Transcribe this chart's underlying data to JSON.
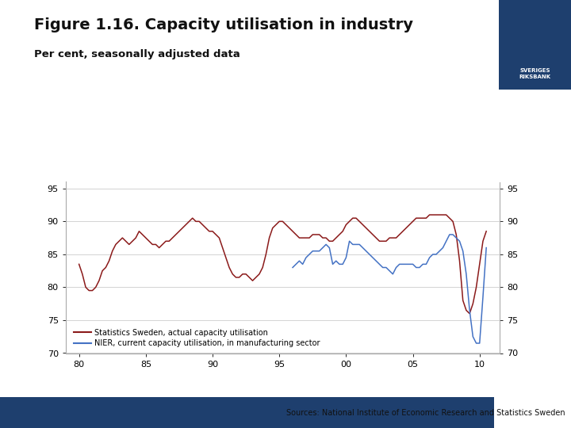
{
  "title": "Figure 1.16. Capacity utilisation in industry",
  "subtitle": "Per cent, seasonally adjusted data",
  "title_fontsize": 14,
  "subtitle_fontsize": 9.5,
  "ylim": [
    70,
    96
  ],
  "yticks": [
    70,
    75,
    80,
    85,
    90,
    95
  ],
  "xticks": [
    1980,
    1985,
    1990,
    1995,
    2000,
    2005,
    2010
  ],
  "xticklabels": [
    "80",
    "85",
    "90",
    "95",
    "00",
    "05",
    "10"
  ],
  "xlim": [
    1979.0,
    2011.5
  ],
  "grid_color": "#cccccc",
  "background_color": "#ffffff",
  "dark_blue": "#1e3f6e",
  "series1_color": "#8b1a1a",
  "series2_color": "#4472c4",
  "legend1_label": "Statistics Sweden, actual capacity utilisation",
  "legend2_label": "NIER, current capacity utilisation, in manufacturing sector",
  "sources_text": "Sources: National Institute of Economic Research and Statistics Sweden",
  "series1_x": [
    1980,
    1980.25,
    1980.5,
    1980.75,
    1981,
    1981.25,
    1981.5,
    1981.75,
    1982,
    1982.25,
    1982.5,
    1982.75,
    1983,
    1983.25,
    1983.5,
    1983.75,
    1984,
    1984.25,
    1984.5,
    1984.75,
    1985,
    1985.25,
    1985.5,
    1985.75,
    1986,
    1986.25,
    1986.5,
    1986.75,
    1987,
    1987.25,
    1987.5,
    1987.75,
    1988,
    1988.25,
    1988.5,
    1988.75,
    1989,
    1989.25,
    1989.5,
    1989.75,
    1990,
    1990.25,
    1990.5,
    1990.75,
    1991,
    1991.25,
    1991.5,
    1991.75,
    1992,
    1992.25,
    1992.5,
    1992.75,
    1993,
    1993.25,
    1993.5,
    1993.75,
    1994,
    1994.25,
    1994.5,
    1994.75,
    1995,
    1995.25,
    1995.5,
    1995.75,
    1996,
    1996.25,
    1996.5,
    1996.75,
    1997,
    1997.25,
    1997.5,
    1997.75,
    1998,
    1998.25,
    1998.5,
    1998.75,
    1999,
    1999.25,
    1999.5,
    1999.75,
    2000,
    2000.25,
    2000.5,
    2000.75,
    2001,
    2001.25,
    2001.5,
    2001.75,
    2002,
    2002.25,
    2002.5,
    2002.75,
    2003,
    2003.25,
    2003.5,
    2003.75,
    2004,
    2004.25,
    2004.5,
    2004.75,
    2005,
    2005.25,
    2005.5,
    2005.75,
    2006,
    2006.25,
    2006.5,
    2006.75,
    2007,
    2007.25,
    2007.5,
    2007.75,
    2008,
    2008.25,
    2008.5,
    2008.75,
    2009,
    2009.25,
    2009.5,
    2009.75,
    2010,
    2010.25,
    2010.5
  ],
  "series1_y": [
    83.5,
    82.0,
    80.0,
    79.5,
    79.5,
    80.0,
    81.0,
    82.5,
    83.0,
    84.0,
    85.5,
    86.5,
    87.0,
    87.5,
    87.0,
    86.5,
    87.0,
    87.5,
    88.5,
    88.0,
    87.5,
    87.0,
    86.5,
    86.5,
    86.0,
    86.5,
    87.0,
    87.0,
    87.5,
    88.0,
    88.5,
    89.0,
    89.5,
    90.0,
    90.5,
    90.0,
    90.0,
    89.5,
    89.0,
    88.5,
    88.5,
    88.0,
    87.5,
    86.0,
    84.5,
    83.0,
    82.0,
    81.5,
    81.5,
    82.0,
    82.0,
    81.5,
    81.0,
    81.5,
    82.0,
    83.0,
    85.0,
    87.5,
    89.0,
    89.5,
    90.0,
    90.0,
    89.5,
    89.0,
    88.5,
    88.0,
    87.5,
    87.5,
    87.5,
    87.5,
    88.0,
    88.0,
    88.0,
    87.5,
    87.5,
    87.0,
    87.0,
    87.5,
    88.0,
    88.5,
    89.5,
    90.0,
    90.5,
    90.5,
    90.0,
    89.5,
    89.0,
    88.5,
    88.0,
    87.5,
    87.0,
    87.0,
    87.0,
    87.5,
    87.5,
    87.5,
    88.0,
    88.5,
    89.0,
    89.5,
    90.0,
    90.5,
    90.5,
    90.5,
    90.5,
    91.0,
    91.0,
    91.0,
    91.0,
    91.0,
    91.0,
    90.5,
    90.0,
    88.0,
    84.0,
    78.0,
    76.5,
    76.0,
    77.5,
    80.0,
    83.5,
    87.0,
    88.5
  ],
  "series2_x": [
    1996,
    1996.25,
    1996.5,
    1996.75,
    1997,
    1997.25,
    1997.5,
    1997.75,
    1998,
    1998.25,
    1998.5,
    1998.75,
    1999,
    1999.25,
    1999.5,
    1999.75,
    2000,
    2000.25,
    2000.5,
    2000.75,
    2001,
    2001.25,
    2001.5,
    2001.75,
    2002,
    2002.25,
    2002.5,
    2002.75,
    2003,
    2003.25,
    2003.5,
    2003.75,
    2004,
    2004.25,
    2004.5,
    2004.75,
    2005,
    2005.25,
    2005.5,
    2005.75,
    2006,
    2006.25,
    2006.5,
    2006.75,
    2007,
    2007.25,
    2007.5,
    2007.75,
    2008,
    2008.25,
    2008.5,
    2008.75,
    2009,
    2009.25,
    2009.5,
    2009.75,
    2010,
    2010.25,
    2010.5
  ],
  "series2_y": [
    83.0,
    83.5,
    84.0,
    83.5,
    84.5,
    85.0,
    85.5,
    85.5,
    85.5,
    86.0,
    86.5,
    86.0,
    83.5,
    84.0,
    83.5,
    83.5,
    84.5,
    87.0,
    86.5,
    86.5,
    86.5,
    86.0,
    85.5,
    85.0,
    84.5,
    84.0,
    83.5,
    83.0,
    83.0,
    82.5,
    82.0,
    83.0,
    83.5,
    83.5,
    83.5,
    83.5,
    83.5,
    83.0,
    83.0,
    83.5,
    83.5,
    84.5,
    85.0,
    85.0,
    85.5,
    86.0,
    87.0,
    88.0,
    88.0,
    87.5,
    87.0,
    85.5,
    82.0,
    76.5,
    72.5,
    71.5,
    71.5,
    78.5,
    86.0
  ]
}
